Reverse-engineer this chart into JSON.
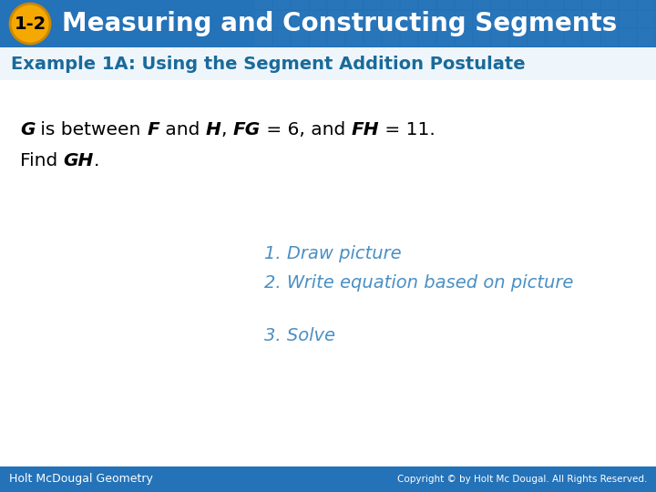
{
  "title_badge_text": "1-2",
  "title_text": "Measuring and Constructing Segments",
  "header_bg_color": "#2472B8",
  "header_text_color": "#FFFFFF",
  "badge_bg_color": "#F5A800",
  "badge_text_color": "#000000",
  "example_label": "Example 1A: Using the Segment Addition Postulate",
  "example_label_color": "#1A6A9A",
  "body_bg_color": "#FFFFFF",
  "problem_text_color": "#000000",
  "step1": "1. Draw picture",
  "step2": "2. Write equation based on picture",
  "step3": "3. Solve",
  "steps_color": "#4A90C4",
  "footer_bg_color": "#2472B8",
  "footer_left": "Holt McDougal Geometry",
  "footer_right": "Copyright © by Holt Mc Dougal. All Rights Reserved.",
  "footer_text_color": "#FFFFFF",
  "grid_tile_color": "#3A80C0",
  "figsize": [
    7.2,
    5.4
  ],
  "dpi": 100
}
